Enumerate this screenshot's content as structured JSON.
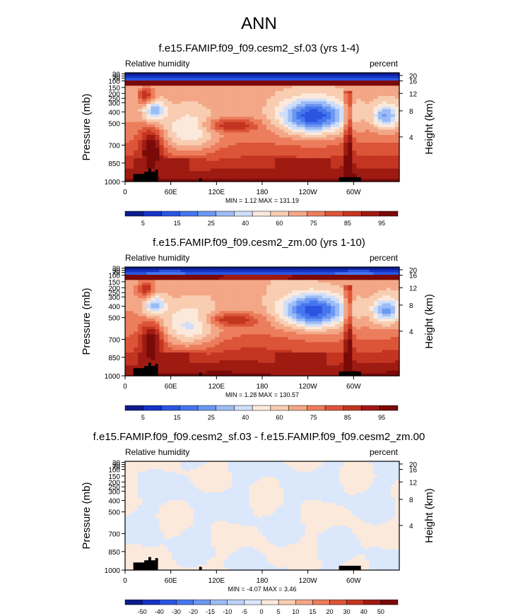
{
  "page": {
    "title": "ANN"
  },
  "colors": {
    "abs_scale": [
      "#0d1b8e",
      "#1533c4",
      "#2b55e0",
      "#4676ee",
      "#6c98f2",
      "#9dbcf5",
      "#cfdffa",
      "#fbe9dc",
      "#f8cdb1",
      "#f3a786",
      "#ec7d5d",
      "#dc5538",
      "#c33521",
      "#9e1b12",
      "#7a0a08"
    ],
    "diff_scale": [
      "#0d1b8e",
      "#1533c4",
      "#2b55e0",
      "#4676ee",
      "#6c98f2",
      "#9dbcf5",
      "#bcd2f8",
      "#dbe7fb",
      "#fbe9dc",
      "#f8cdb1",
      "#f3a786",
      "#ec7d5d",
      "#dc5538",
      "#c33521",
      "#9e1b12",
      "#7a0a08"
    ]
  },
  "chart_data": [
    {
      "type": "heatmap",
      "title": "f.e15.FAMIP.f09_f09.cesm2_sf.03 (yrs 1-4)",
      "left_label": "Relative humidity",
      "right_label": "percent",
      "ylabel": "Pressure (mb)",
      "ylabel_right": "Height (km)",
      "x_ticks": [
        "0",
        "60E",
        "120E",
        "180",
        "120W",
        "60W"
      ],
      "y_ticks": [
        "30",
        "50",
        "70",
        "100",
        "150",
        "200",
        "250",
        "300",
        "400",
        "500",
        "700",
        "850",
        "1000"
      ],
      "y_ticks_right": [
        "20",
        "16",
        "12",
        "8",
        "4"
      ],
      "stats": "MIN =   1.12  MAX = 131.19",
      "colorbar_labels": [
        "5",
        "15",
        "25",
        "40",
        "60",
        "75",
        "85",
        "95"
      ],
      "features": [
        "humid tropopause band near 100 mb",
        "dry minimum near 120W at 400 mb",
        "moist boundary layer 850-1000 mb"
      ]
    },
    {
      "type": "heatmap",
      "title": "f.e15.FAMIP.f09_f09.cesm2_zm.00 (yrs 1-10)",
      "left_label": "Relative humidity",
      "right_label": "percent",
      "ylabel": "Pressure (mb)",
      "ylabel_right": "Height (km)",
      "x_ticks": [
        "0",
        "60E",
        "120E",
        "180",
        "120W",
        "60W"
      ],
      "y_ticks": [
        "30",
        "50",
        "70",
        "100",
        "150",
        "200",
        "250",
        "300",
        "400",
        "500",
        "700",
        "850",
        "1000"
      ],
      "y_ticks_right": [
        "20",
        "16",
        "12",
        "8",
        "4"
      ],
      "stats": "MIN =   1.28  MAX = 130.57",
      "colorbar_labels": [
        "5",
        "15",
        "25",
        "40",
        "60",
        "75",
        "85",
        "95"
      ]
    },
    {
      "type": "heatmap",
      "title": "f.e15.FAMIP.f09_f09.cesm2_sf.03 - f.e15.FAMIP.f09_f09.cesm2_zm.00",
      "left_label": "Relative humidity",
      "right_label": "percent",
      "ylabel": "Pressure (mb)",
      "ylabel_right": "Height (km)",
      "x_ticks": [
        "0",
        "60E",
        "120E",
        "180",
        "120W",
        "60W"
      ],
      "y_ticks": [
        "30",
        "50",
        "70",
        "100",
        "150",
        "200",
        "250",
        "300",
        "400",
        "500",
        "700",
        "850",
        "1000"
      ],
      "y_ticks_right": [
        "20",
        "16",
        "12",
        "8",
        "4"
      ],
      "stats": "MIN =  -4.07  MAX =   3.46",
      "colorbar_labels": [
        "-50",
        "-40",
        "-30",
        "-20",
        "-15",
        "-10",
        "-5",
        "0",
        "5",
        "10",
        "15",
        "20",
        "30",
        "40",
        "50"
      ]
    }
  ]
}
